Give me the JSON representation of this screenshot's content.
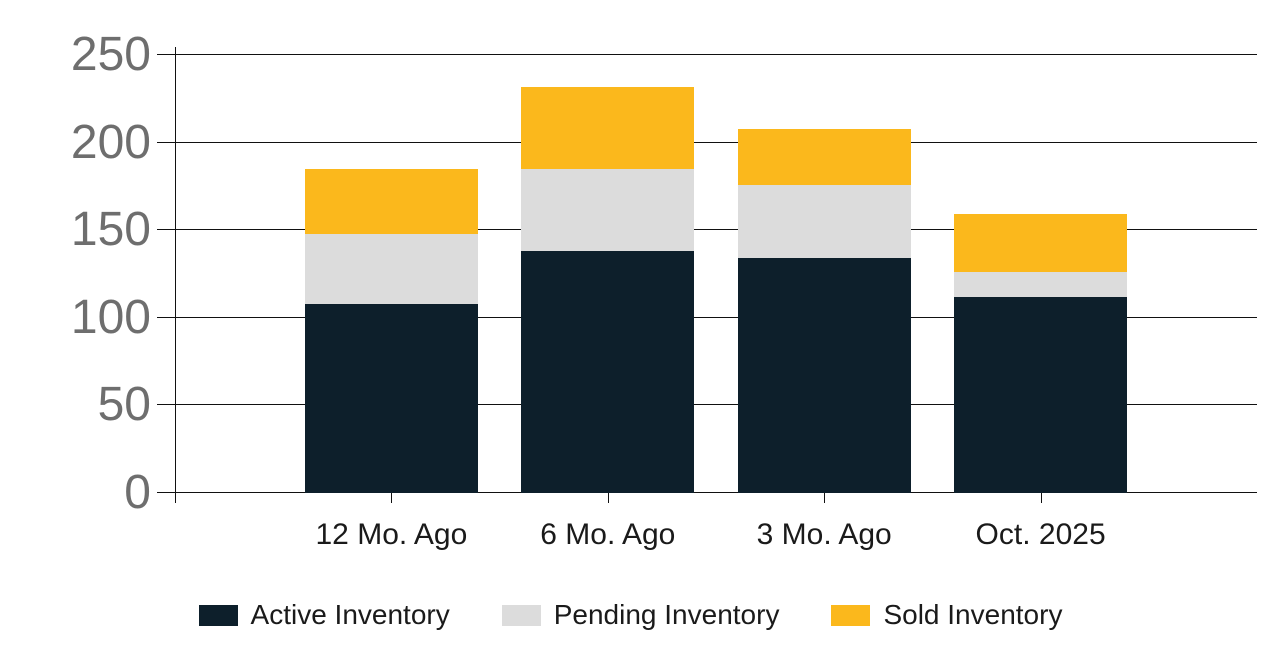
{
  "chart_data": {
    "type": "bar",
    "stacked": true,
    "title": "",
    "xlabel": "",
    "ylabel": "",
    "categories": [
      "12 Mo. Ago",
      "6 Mo. Ago",
      "3 Mo. Ago",
      "Oct. 2025"
    ],
    "series": [
      {
        "name": "Active Inventory",
        "color": "#0d1f2b",
        "values": [
          108,
          138,
          134,
          112
        ]
      },
      {
        "name": "Pending Inventory",
        "color": "#dcdcdc",
        "values": [
          40,
          47,
          42,
          14
        ]
      },
      {
        "name": "Sold Inventory",
        "color": "#fbb81c",
        "values": [
          37,
          47,
          32,
          33
        ]
      }
    ],
    "stack_totals": [
      185,
      232,
      208,
      159
    ],
    "ylim": [
      0,
      250
    ],
    "y_ticks": [
      0,
      50,
      100,
      150,
      200,
      250
    ],
    "grid": true,
    "legend_position": "bottom",
    "colors": {
      "axis_number_labels": "#6e6e6e",
      "category_labels": "#1a1a1a",
      "gridlines": "#111111",
      "background": "#ffffff"
    }
  }
}
